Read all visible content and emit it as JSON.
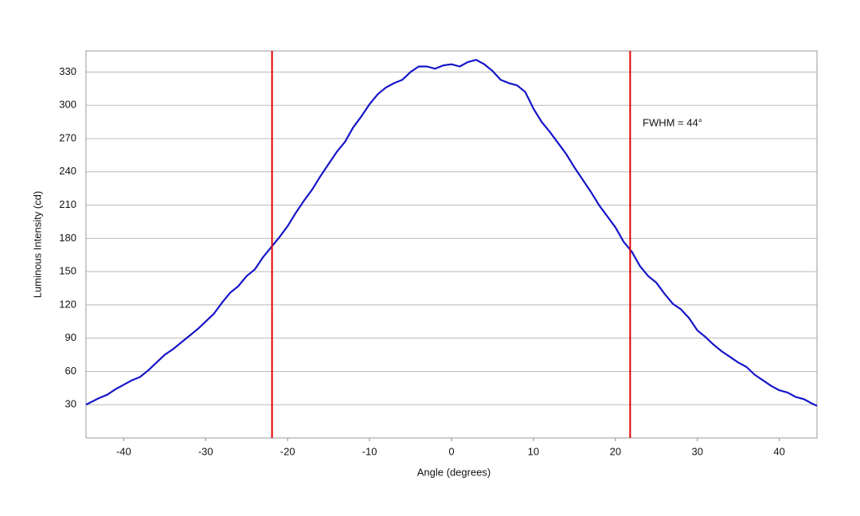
{
  "chart_data": {
    "type": "line",
    "x_label": "Angle (degrees)",
    "y_label": "Luminous Intensity (cd)",
    "annotation": "FWHM = 44°",
    "xlim": [
      -44.6,
      44.6
    ],
    "ylim": [
      0,
      349
    ],
    "xticks": [
      -40,
      -30,
      -20,
      -10,
      0,
      10,
      20,
      30,
      40
    ],
    "yticks": [
      30,
      60,
      90,
      120,
      150,
      180,
      210,
      240,
      270,
      300,
      330
    ],
    "grid": true,
    "x": [
      -44.6,
      -43,
      -42,
      -41,
      -40,
      -39,
      -38,
      -37,
      -36,
      -35,
      -34,
      -33,
      -32,
      -31,
      -30,
      -29,
      -28,
      -27,
      -26,
      -25,
      -24,
      -23,
      -22,
      -21,
      -20,
      -19,
      -18,
      -17,
      -16,
      -15,
      -14,
      -13,
      -12,
      -11,
      -10,
      -9,
      -8,
      -7,
      -6,
      -5,
      -4,
      -3,
      -2,
      -1,
      0,
      1,
      2,
      3,
      4,
      5,
      6,
      7,
      8,
      9,
      10,
      11,
      12,
      13,
      14,
      15,
      16,
      17,
      18,
      19,
      20,
      21,
      22,
      23,
      24,
      25,
      26,
      27,
      28,
      29,
      30,
      31,
      32,
      33,
      34,
      35,
      36,
      37,
      38,
      39,
      40,
      41,
      42,
      43,
      44,
      44.6
    ],
    "series": [
      {
        "color": "#1414c8",
        "values": [
          30,
          36,
          39,
          44,
          48,
          52,
          55,
          61,
          68,
          75,
          80,
          86,
          92,
          98,
          105,
          112,
          122,
          131,
          137,
          146,
          152,
          163,
          172,
          181,
          191,
          203,
          214,
          224,
          236,
          247,
          258,
          267,
          280,
          290,
          301,
          310,
          316,
          320,
          323,
          330,
          335,
          335,
          333,
          336,
          337,
          335,
          339,
          341,
          337,
          331,
          323,
          320,
          318,
          312,
          297,
          285,
          276,
          266,
          256,
          244,
          233,
          222,
          210,
          200,
          190,
          177,
          168,
          155,
          146,
          140,
          130,
          121,
          116,
          108,
          97,
          91,
          84,
          78,
          73,
          68,
          64,
          57,
          52,
          47,
          43,
          41,
          37,
          35,
          31,
          29
        ]
      }
    ],
    "vlines": {
      "color": "#e00000",
      "x": [
        -21.9,
        21.8
      ]
    }
  }
}
